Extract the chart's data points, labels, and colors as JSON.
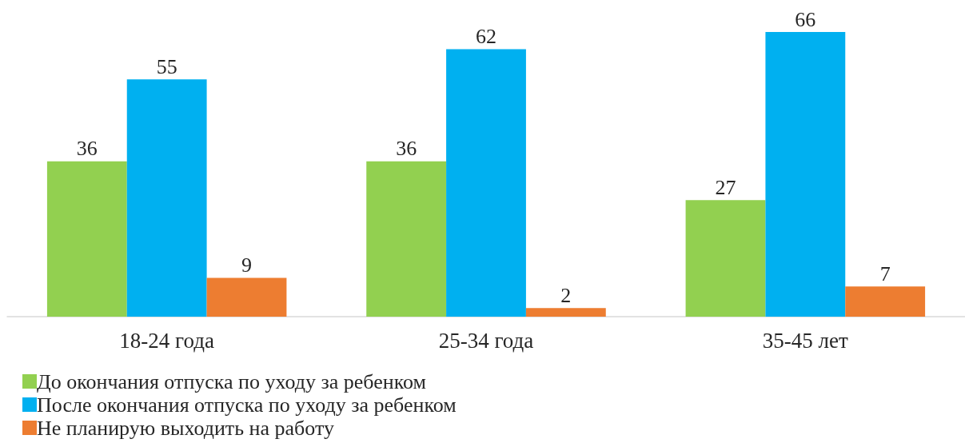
{
  "chart_data": {
    "type": "bar",
    "categories": [
      "18-24 года",
      "25-34 года",
      "35-45 лет"
    ],
    "series": [
      {
        "name": "До окончания отпуска по уходу за ребенком",
        "color": "#92d050",
        "values": [
          36,
          36,
          27
        ]
      },
      {
        "name": "После окончания отпуска по уходу за ребенком",
        "color": "#00b0f0",
        "values": [
          55,
          62,
          66
        ]
      },
      {
        "name": "Не планирую выходить на работу",
        "color": "#ed7d31",
        "values": [
          9,
          2,
          7
        ]
      }
    ],
    "data_labels": true,
    "legend": "bottom left"
  }
}
